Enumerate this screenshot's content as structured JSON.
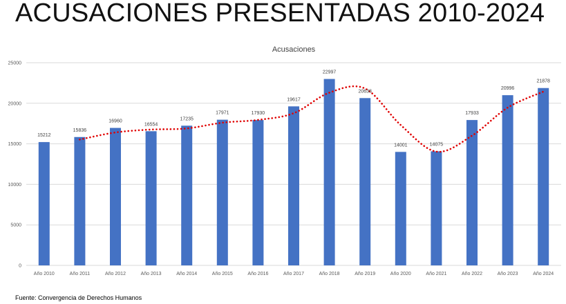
{
  "header": {
    "title": "ACUSACIONES PRESENTADAS 2010-2024"
  },
  "footer": {
    "source": "Fuente: Convergencia de Derechos Humanos"
  },
  "colors": {
    "bar": "#4472C4",
    "trendline": "#E00000",
    "gridline": "#D9D9D9",
    "axis_text": "#595959"
  },
  "chart_data": {
    "type": "bar",
    "title": "Acusaciones",
    "categories": [
      "Año 2010",
      "Año 2011",
      "Año 2012",
      "Año 2013",
      "Año 2014",
      "Año 2015",
      "Año 2016",
      "Año 2017",
      "Año 2018",
      "Año 2019",
      "Año 2020",
      "Año 2021",
      "Año 2022",
      "Año 2023",
      "Año 2024"
    ],
    "values": [
      15212,
      15836,
      16960,
      16554,
      17235,
      17971,
      17930,
      19617,
      22997,
      20638,
      14001,
      14075,
      17933,
      20996,
      21878
    ],
    "data_labels": [
      "15212",
      "15836",
      "16960",
      "16554",
      "17235",
      "17971",
      "17930",
      "19617",
      "22997",
      "20638",
      "14001",
      "14075",
      "17933",
      "20996",
      "21878"
    ],
    "ylim": [
      0,
      25000
    ],
    "yticks": [
      "0",
      "5000",
      "10000",
      "15000",
      "20000",
      "25000"
    ],
    "ytick_values": [
      0,
      5000,
      10000,
      15000,
      20000,
      25000
    ],
    "grid": true,
    "legend": "none",
    "trendline": "dotted moving average"
  }
}
